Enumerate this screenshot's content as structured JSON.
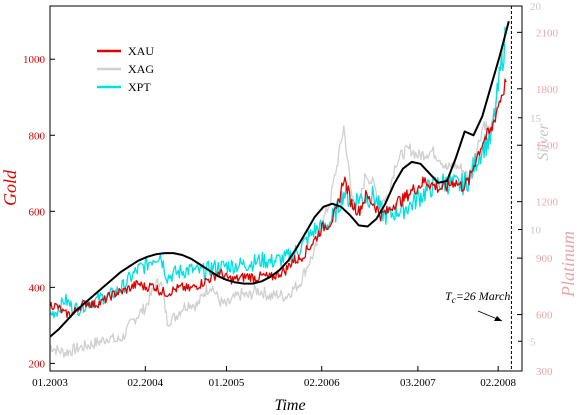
{
  "chart_data": {
    "type": "line",
    "title": "",
    "xlabel": "Time",
    "ylabel_left": "Gold",
    "ylabel_right_silver": "Silver",
    "ylabel_right_platinum": "Platinum",
    "x_ticks": [
      "01.2003",
      "02.2004",
      "01.2005",
      "02.2006",
      "03.2007",
      "02.2008"
    ],
    "x_tick_values": [
      2003.0,
      2004.08,
      2005.0,
      2006.08,
      2007.17,
      2008.08
    ],
    "xlim": [
      2003.0,
      2008.35
    ],
    "gold_axis": {
      "ticks": [
        200,
        400,
        600,
        800,
        1000
      ],
      "range": [
        180,
        1140
      ]
    },
    "silver_axis": {
      "ticks": [
        5,
        10,
        15,
        20
      ],
      "range": [
        3.67,
        20.0
      ]
    },
    "platinum_axis": {
      "ticks": [
        300,
        600,
        900,
        1200,
        1500,
        1800,
        2100
      ],
      "range": [
        300,
        2240
      ]
    },
    "colors": {
      "XAU": "#e00000",
      "XAG": "#d0d0d0",
      "XPT": "#00e0e0",
      "fit": "#000000",
      "gold_axis": "#e00000",
      "silver_axis": "#c8c8c8",
      "platinum_axis": "#e8a8a8"
    },
    "legend": {
      "placement": "top-left",
      "entries": [
        "XAU",
        "XAG",
        "XPT"
      ]
    },
    "annotation": {
      "text_prefix": "T",
      "text_sub": "c",
      "text_suffix": "=26 March",
      "tc_x": 2008.23
    },
    "series": [
      {
        "name": "XAU",
        "axis": "gold",
        "x": [
          2003.0,
          2003.08,
          2003.17,
          2003.25,
          2003.33,
          2003.42,
          2003.5,
          2003.58,
          2003.67,
          2003.75,
          2003.83,
          2003.92,
          2004.0,
          2004.08,
          2004.17,
          2004.25,
          2004.33,
          2004.42,
          2004.5,
          2004.58,
          2004.67,
          2004.75,
          2004.83,
          2004.92,
          2005.0,
          2005.08,
          2005.17,
          2005.25,
          2005.33,
          2005.42,
          2005.5,
          2005.58,
          2005.67,
          2005.75,
          2005.83,
          2005.92,
          2006.0,
          2006.08,
          2006.17,
          2006.25,
          2006.33,
          2006.42,
          2006.5,
          2006.58,
          2006.67,
          2006.75,
          2006.83,
          2006.92,
          2007.0,
          2007.08,
          2007.17,
          2007.25,
          2007.33,
          2007.42,
          2007.5,
          2007.58,
          2007.67,
          2007.75,
          2007.83,
          2007.92,
          2008.0,
          2008.08,
          2008.17
        ],
        "y": [
          355,
          350,
          330,
          330,
          350,
          360,
          355,
          360,
          375,
          385,
          390,
          400,
          410,
          400,
          405,
          390,
          385,
          395,
          400,
          395,
          405,
          415,
          425,
          440,
          425,
          420,
          425,
          430,
          425,
          430,
          425,
          435,
          445,
          470,
          475,
          500,
          525,
          555,
          570,
          600,
          690,
          620,
          600,
          640,
          620,
          590,
          600,
          625,
          630,
          650,
          665,
          680,
          670,
          660,
          665,
          680,
          665,
          680,
          740,
          790,
          810,
          880,
          940
        ]
      },
      {
        "name": "XAG",
        "axis": "silver",
        "x": [
          2003.0,
          2003.08,
          2003.17,
          2003.25,
          2003.33,
          2003.42,
          2003.5,
          2003.58,
          2003.67,
          2003.75,
          2003.83,
          2003.92,
          2004.0,
          2004.08,
          2004.17,
          2004.25,
          2004.33,
          2004.42,
          2004.5,
          2004.58,
          2004.67,
          2004.75,
          2004.83,
          2004.92,
          2005.0,
          2005.08,
          2005.17,
          2005.25,
          2005.33,
          2005.42,
          2005.5,
          2005.58,
          2005.67,
          2005.75,
          2005.83,
          2005.92,
          2006.0,
          2006.08,
          2006.17,
          2006.25,
          2006.33,
          2006.42,
          2006.5,
          2006.58,
          2006.67,
          2006.75,
          2006.83,
          2006.92,
          2007.0,
          2007.08,
          2007.17,
          2007.25,
          2007.33,
          2007.42,
          2007.5,
          2007.58,
          2007.67,
          2007.75,
          2007.83,
          2007.92,
          2008.0,
          2008.08,
          2008.17
        ],
        "y": [
          4.8,
          4.6,
          4.5,
          4.6,
          4.7,
          4.8,
          4.9,
          5.0,
          5.2,
          5.0,
          5.2,
          5.8,
          6.2,
          6.5,
          7.3,
          7.8,
          5.9,
          6.1,
          6.5,
          6.7,
          6.6,
          7.2,
          7.5,
          6.8,
          6.6,
          6.9,
          7.1,
          7.0,
          7.3,
          7.2,
          7.0,
          7.1,
          7.0,
          7.3,
          7.6,
          8.4,
          9.0,
          10.2,
          11.2,
          12.8,
          14.6,
          11.5,
          11.0,
          12.5,
          12.0,
          11.2,
          11.5,
          13.0,
          13.4,
          13.6,
          13.3,
          13.4,
          13.5,
          13.2,
          12.7,
          12.9,
          12.7,
          12.3,
          13.5,
          14.8,
          14.3,
          16.5,
          19.0
        ]
      },
      {
        "name": "XPT",
        "axis": "platinum",
        "x": [
          2003.0,
          2003.08,
          2003.17,
          2003.25,
          2003.33,
          2003.42,
          2003.5,
          2003.58,
          2003.67,
          2003.75,
          2003.83,
          2003.92,
          2004.0,
          2004.08,
          2004.17,
          2004.25,
          2004.33,
          2004.42,
          2004.5,
          2004.58,
          2004.67,
          2004.75,
          2004.83,
          2004.92,
          2005.0,
          2005.08,
          2005.17,
          2005.25,
          2005.33,
          2005.42,
          2005.5,
          2005.58,
          2005.67,
          2005.75,
          2005.83,
          2005.92,
          2006.0,
          2006.08,
          2006.17,
          2006.25,
          2006.33,
          2006.42,
          2006.5,
          2006.58,
          2006.67,
          2006.75,
          2006.83,
          2006.92,
          2007.0,
          2007.08,
          2007.17,
          2007.25,
          2007.33,
          2007.42,
          2007.5,
          2007.58,
          2007.67,
          2007.75,
          2007.83,
          2007.92,
          2008.0,
          2008.08,
          2008.17
        ],
        "y": [
          600,
          620,
          680,
          640,
          630,
          660,
          670,
          690,
          700,
          720,
          750,
          800,
          840,
          860,
          900,
          920,
          800,
          820,
          830,
          840,
          830,
          830,
          850,
          850,
          860,
          860,
          865,
          870,
          880,
          890,
          880,
          890,
          900,
          920,
          950,
          1000,
          1050,
          1060,
          1090,
          1150,
          1250,
          1200,
          1220,
          1220,
          1230,
          1150,
          1120,
          1150,
          1160,
          1180,
          1220,
          1250,
          1280,
          1300,
          1300,
          1290,
          1290,
          1320,
          1420,
          1500,
          1530,
          1800,
          2100
        ]
      },
      {
        "name": "",
        "axis": "gold",
        "x": [
          2003.0,
          2003.1,
          2003.2,
          2003.3,
          2003.4,
          2003.5,
          2003.6,
          2003.7,
          2003.8,
          2003.9,
          2004.0,
          2004.1,
          2004.2,
          2004.3,
          2004.4,
          2004.5,
          2004.6,
          2004.7,
          2004.8,
          2004.9,
          2005.0,
          2005.1,
          2005.2,
          2005.3,
          2005.4,
          2005.5,
          2005.6,
          2005.7,
          2005.8,
          2005.9,
          2006.0,
          2006.1,
          2006.2,
          2006.3,
          2006.4,
          2006.5,
          2006.6,
          2006.7,
          2006.8,
          2006.9,
          2007.0,
          2007.1,
          2007.2,
          2007.3,
          2007.4,
          2007.5,
          2007.6,
          2007.7,
          2007.8,
          2007.9,
          2008.0,
          2008.1,
          2008.2
        ],
        "y": [
          270,
          290,
          315,
          340,
          360,
          380,
          400,
          420,
          440,
          455,
          470,
          480,
          487,
          490,
          490,
          485,
          475,
          460,
          445,
          430,
          420,
          413,
          410,
          410,
          416,
          428,
          445,
          470,
          505,
          545,
          585,
          612,
          620,
          612,
          590,
          563,
          560,
          580,
          620,
          672,
          712,
          730,
          725,
          700,
          675,
          680,
          740,
          810,
          800,
          850,
          930,
          1010,
          1100
        ]
      }
    ]
  }
}
